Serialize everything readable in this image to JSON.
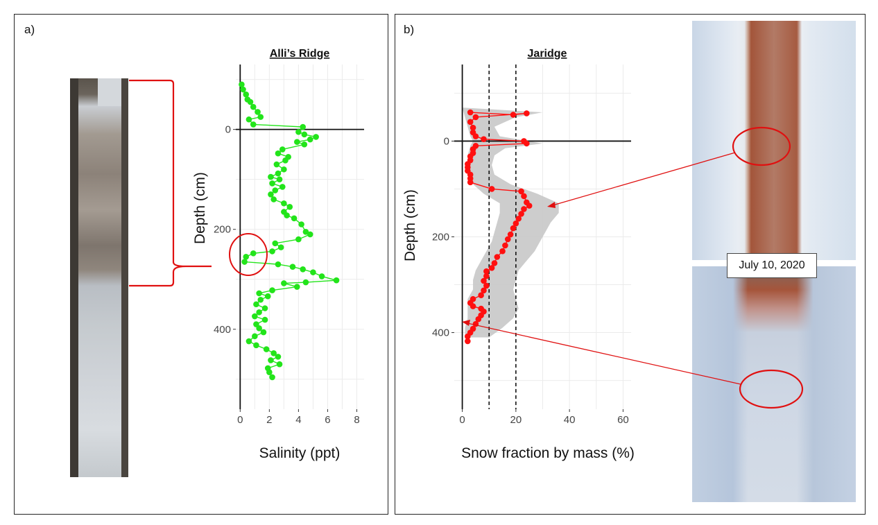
{
  "panels": {
    "a": {
      "label": "a)"
    },
    "b": {
      "label": "b)"
    }
  },
  "callout": {
    "date": "July 10, 2020"
  },
  "colors": {
    "salinity": "#22e41a",
    "snow": "#ff1010",
    "envelope": "#c8c8c8",
    "annotation": "#e01010"
  },
  "chart_data": [
    {
      "type": "scatter",
      "title": "Alli’s Ridge",
      "xlabel": "Salinity (ppt)",
      "ylabel": "Depth (cm)",
      "xlim": [
        -0.3,
        8.5
      ],
      "ylim": [
        -130,
        560
      ],
      "y_reversed": true,
      "xticks": [
        0,
        2,
        4,
        6,
        8
      ],
      "yticks": [
        0,
        200,
        400
      ],
      "hline": 0,
      "vline": 0,
      "grid": true,
      "series": [
        {
          "points": [
            [
              0.1,
              -90
            ],
            [
              0.2,
              -80
            ],
            [
              0.4,
              -70
            ],
            [
              0.5,
              -60
            ],
            [
              0.7,
              -55
            ],
            [
              0.9,
              -45
            ],
            [
              1.2,
              -35
            ],
            [
              1.4,
              -25
            ],
            [
              0.6,
              -20
            ],
            [
              0.9,
              -10
            ],
            [
              4.3,
              -5
            ],
            [
              4.0,
              5
            ],
            [
              4.4,
              10
            ],
            [
              5.2,
              15
            ],
            [
              4.8,
              20
            ],
            [
              3.9,
              25
            ],
            [
              4.4,
              30
            ],
            [
              2.9,
              40
            ],
            [
              2.6,
              48
            ],
            [
              3.3,
              55
            ],
            [
              3.1,
              62
            ],
            [
              2.5,
              70
            ],
            [
              3.0,
              80
            ],
            [
              2.6,
              88
            ],
            [
              2.1,
              95
            ],
            [
              2.7,
              100
            ],
            [
              2.2,
              108
            ],
            [
              2.9,
              115
            ],
            [
              2.4,
              122
            ],
            [
              2.1,
              130
            ],
            [
              2.3,
              140
            ],
            [
              3.0,
              148
            ],
            [
              3.4,
              155
            ],
            [
              3.0,
              165
            ],
            [
              3.2,
              172
            ],
            [
              3.7,
              178
            ],
            [
              4.2,
              190
            ],
            [
              4.5,
              205
            ],
            [
              4.8,
              210
            ],
            [
              4.0,
              220
            ],
            [
              2.4,
              228
            ],
            [
              2.8,
              236
            ],
            [
              2.2,
              244
            ],
            [
              0.9,
              248
            ],
            [
              0.4,
              255
            ],
            [
              0.3,
              265
            ],
            [
              2.6,
              270
            ],
            [
              3.6,
              275
            ],
            [
              4.3,
              280
            ],
            [
              5.0,
              286
            ],
            [
              5.6,
              294
            ],
            [
              6.6,
              302
            ],
            [
              4.5,
              306
            ],
            [
              3.0,
              308
            ],
            [
              3.9,
              315
            ],
            [
              2.2,
              322
            ],
            [
              1.3,
              328
            ],
            [
              1.9,
              334
            ],
            [
              1.4,
              341
            ],
            [
              1.1,
              350
            ],
            [
              1.7,
              358
            ],
            [
              1.3,
              366
            ],
            [
              1.0,
              374
            ],
            [
              1.7,
              381
            ],
            [
              1.1,
              390
            ],
            [
              1.3,
              398
            ],
            [
              1.6,
              406
            ],
            [
              1.0,
              414
            ],
            [
              0.6,
              424
            ],
            [
              1.1,
              432
            ],
            [
              1.8,
              440
            ],
            [
              2.3,
              448
            ],
            [
              2.6,
              455
            ],
            [
              2.1,
              462
            ],
            [
              2.7,
              470
            ],
            [
              1.9,
              478
            ],
            [
              2.0,
              486
            ],
            [
              2.2,
              496
            ]
          ]
        }
      ]
    },
    {
      "type": "line",
      "title": "Jaridge",
      "xlabel": "Snow fraction by mass (%)",
      "ylabel": "Depth (cm)",
      "xlim": [
        -3,
        63
      ],
      "ylim": [
        -160,
        560
      ],
      "y_reversed": true,
      "xticks": [
        0,
        20,
        40,
        60
      ],
      "yticks": [
        0,
        200,
        400
      ],
      "hline": 0,
      "vline": 0,
      "reference_lines_x": [
        10,
        20
      ],
      "grid": true,
      "series": [
        {
          "points": [
            [
              3,
              -60
            ],
            [
              19,
              -55
            ],
            [
              24,
              -58
            ],
            [
              5,
              -50
            ],
            [
              3,
              -40
            ],
            [
              4,
              -28
            ],
            [
              4,
              -18
            ],
            [
              5,
              -10
            ],
            [
              8,
              -4
            ],
            [
              23,
              0
            ],
            [
              24,
              5
            ],
            [
              5,
              10
            ],
            [
              4,
              17
            ],
            [
              4,
              25
            ],
            [
              3,
              32
            ],
            [
              3,
              40
            ],
            [
              2,
              48
            ],
            [
              2,
              55
            ],
            [
              2,
              62
            ],
            [
              3,
              70
            ],
            [
              3,
              78
            ],
            [
              3,
              86
            ],
            [
              11,
              100
            ],
            [
              22,
              105
            ],
            [
              23,
              115
            ],
            [
              24,
              128
            ],
            [
              25,
              135
            ],
            [
              23,
              142
            ],
            [
              22,
              152
            ],
            [
              21,
              162
            ],
            [
              20,
              172
            ],
            [
              19,
              182
            ],
            [
              18,
              195
            ],
            [
              17,
              205
            ],
            [
              16,
              218
            ],
            [
              15,
              230
            ],
            [
              13,
              242
            ],
            [
              12,
              255
            ],
            [
              11,
              265
            ],
            [
              9,
              272
            ],
            [
              9,
              282
            ],
            [
              8,
              292
            ],
            [
              9,
              302
            ],
            [
              8,
              312
            ],
            [
              7,
              322
            ],
            [
              4,
              330
            ],
            [
              3,
              338
            ],
            [
              4,
              345
            ],
            [
              7,
              350
            ],
            [
              8,
              356
            ],
            [
              7,
              364
            ],
            [
              6,
              372
            ],
            [
              5,
              382
            ],
            [
              4,
              392
            ],
            [
              3,
              400
            ],
            [
              2,
              408
            ],
            [
              2,
              418
            ]
          ],
          "band_low": [
            [
              0,
              -70
            ],
            [
              1,
              -50
            ],
            [
              2,
              -30
            ],
            [
              3,
              -10
            ],
            [
              4,
              0
            ],
            [
              3,
              10
            ],
            [
              2,
              30
            ],
            [
              2,
              50
            ],
            [
              2,
              70
            ],
            [
              4,
              90
            ],
            [
              8,
              110
            ],
            [
              14,
              130
            ],
            [
              14,
              150
            ],
            [
              13,
              170
            ],
            [
              12,
              190
            ],
            [
              11,
              210
            ],
            [
              9,
              230
            ],
            [
              7,
              250
            ],
            [
              5,
              270
            ],
            [
              4,
              290
            ],
            [
              4,
              310
            ],
            [
              2,
              330
            ],
            [
              2,
              350
            ],
            [
              2,
              370
            ],
            [
              1,
              390
            ],
            [
              1,
              410
            ]
          ],
          "band_high": [
            [
              30,
              -60
            ],
            [
              20,
              -50
            ],
            [
              12,
              -30
            ],
            [
              14,
              -10
            ],
            [
              30,
              5
            ],
            [
              16,
              15
            ],
            [
              12,
              30
            ],
            [
              11,
              50
            ],
            [
              12,
              70
            ],
            [
              18,
              90
            ],
            [
              28,
              110
            ],
            [
              36,
              130
            ],
            [
              36,
              150
            ],
            [
              33,
              170
            ],
            [
              31,
              190
            ],
            [
              29,
              210
            ],
            [
              27,
              230
            ],
            [
              24,
              250
            ],
            [
              21,
              270
            ],
            [
              20,
              290
            ],
            [
              19,
              310
            ],
            [
              20,
              330
            ],
            [
              21,
              350
            ],
            [
              19,
              370
            ],
            [
              15,
              390
            ],
            [
              10,
              410
            ]
          ]
        }
      ]
    }
  ]
}
